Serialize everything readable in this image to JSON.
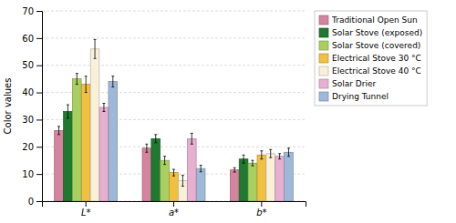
{
  "chart_data": {
    "type": "bar",
    "categories": [
      "L*",
      "a*",
      "b*"
    ],
    "series": [
      {
        "name": "Traditional Open Sun",
        "color": "#d4849e",
        "values": [
          26,
          19.5,
          11.5
        ],
        "errors": [
          1.5,
          1.5,
          0.8
        ]
      },
      {
        "name": "Solar Stove (exposed)",
        "color": "#1e7a30",
        "values": [
          33,
          23,
          15.5
        ],
        "errors": [
          2.5,
          1.5,
          1.5
        ]
      },
      {
        "name": "Solar Stove (covered)",
        "color": "#a8d060",
        "values": [
          45,
          15,
          14
        ],
        "errors": [
          2.0,
          1.5,
          1.0
        ]
      },
      {
        "name": "Electrical Stove 30 °C",
        "color": "#f0c040",
        "values": [
          43,
          10.5,
          17
        ],
        "errors": [
          3.0,
          1.2,
          1.5
        ]
      },
      {
        "name": "Electrical Stove 40 °C",
        "color": "#f8f0d8",
        "values": [
          56,
          7.5,
          17.5
        ],
        "errors": [
          3.5,
          2.0,
          1.5
        ]
      },
      {
        "name": "Solar Drier",
        "color": "#e8b0d0",
        "values": [
          34.5,
          23,
          16.5
        ],
        "errors": [
          1.5,
          2.0,
          1.0
        ]
      },
      {
        "name": "Drying Tunnel",
        "color": "#a0b8d8",
        "values": [
          44,
          12,
          18
        ],
        "errors": [
          2.0,
          1.2,
          1.5
        ]
      }
    ],
    "ylabel": "Color values",
    "ylim": [
      0,
      70
    ],
    "yticks": [
      0,
      10,
      20,
      30,
      40,
      50,
      60,
      70
    ],
    "grid": true,
    "legend": "right"
  }
}
